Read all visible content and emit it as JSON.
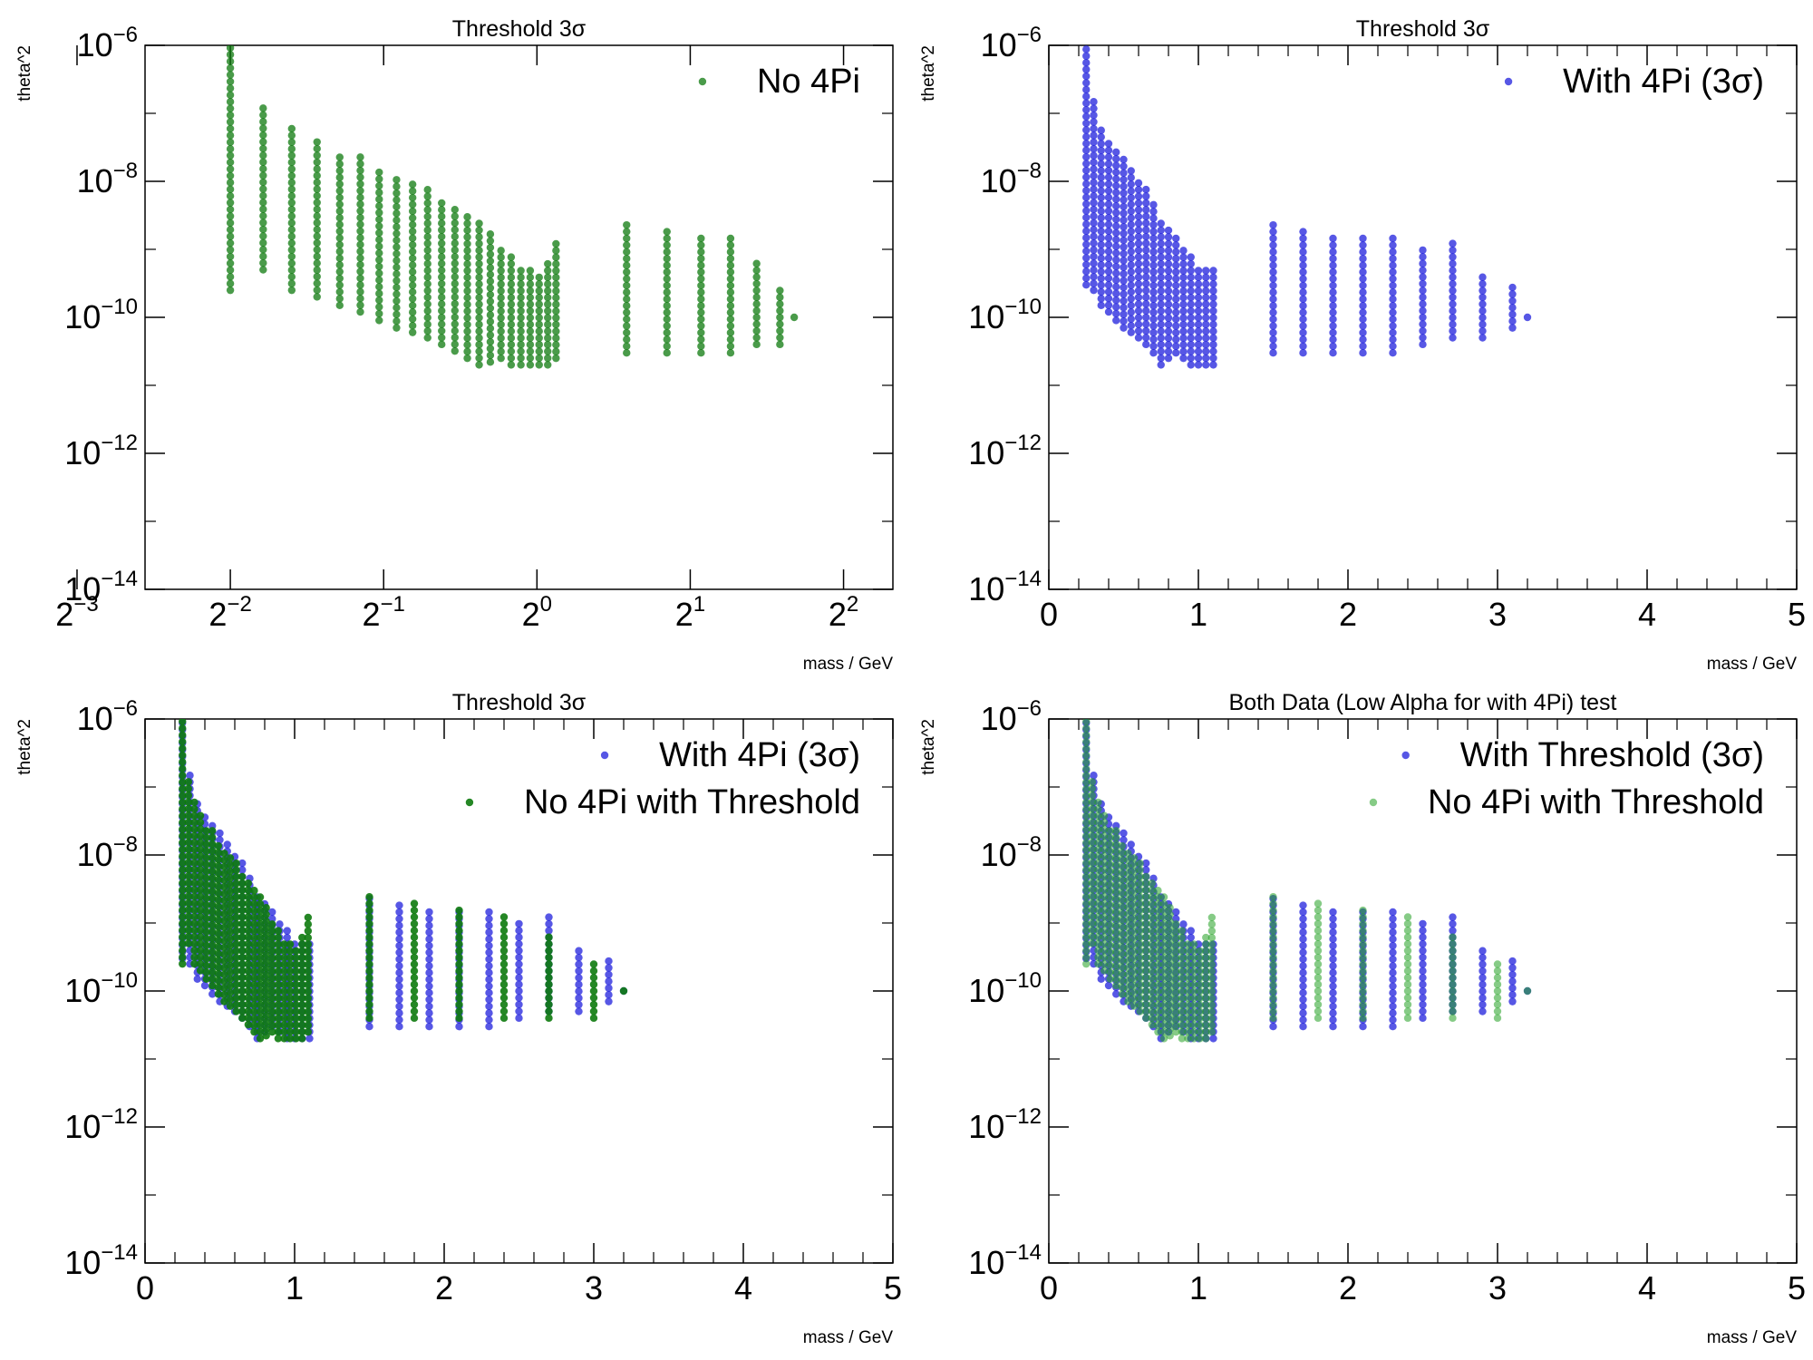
{
  "colors": {
    "with4pi": "#1f1fdc",
    "no4pi": "#0d7a0d",
    "no4pi_light": "#7dcf7d",
    "background": "#ffffff"
  },
  "chart_data": [
    {
      "type": "scatter",
      "title": "Threshold 3σ",
      "xlabel": "mass / GeV",
      "ylabel": "theta^2",
      "xscale": "log2",
      "xlim": [
        0.17,
        5.0
      ],
      "yscale": "log10",
      "ylim": [
        1e-14,
        1e-06
      ],
      "xtick_labels": [
        "2^-3",
        "2^-2",
        "2^-1",
        "2^0",
        "2^1",
        "2^2"
      ],
      "ytick_labels": [
        "10^-14",
        "10^-12",
        "10^-10",
        "10^-8",
        "10^-6"
      ],
      "legend_position": "top-right",
      "series": [
        {
          "name": "No 4Pi",
          "color": "#0d7a0d",
          "alpha": 0.75,
          "x": [
            0.25,
            0.29,
            0.33,
            0.37,
            0.41,
            0.45,
            0.49,
            0.53,
            0.57,
            0.61,
            0.65,
            0.69,
            0.73,
            0.77,
            0.81,
            0.85,
            0.89,
            0.93,
            0.97,
            1.01,
            1.05,
            1.09,
            1.5,
            1.8,
            2.1,
            2.4,
            2.7,
            3.0,
            3.2
          ],
          "y_min": [
            2.5e-10,
            5e-10,
            2.5e-10,
            2e-10,
            1.5e-10,
            1.2e-10,
            9e-11,
            7e-11,
            6e-11,
            5e-11,
            4e-11,
            3.2e-11,
            2.5e-11,
            2e-11,
            2.2e-11,
            2.5e-11,
            2e-11,
            2e-11,
            2e-11,
            2e-11,
            2e-11,
            2.5e-11,
            3e-11,
            3e-11,
            3e-11,
            3e-11,
            4e-11,
            4e-11,
            1e-10
          ],
          "y_max": [
            1e-06,
            1.3e-07,
            6e-08,
            3.8e-08,
            2.7e-08,
            2.3e-08,
            1.6e-08,
            1.3e-08,
            1e-08,
            8e-09,
            6e-09,
            4e-09,
            3e-09,
            2.5e-09,
            1.7e-09,
            1.2e-09,
            9e-10,
            5e-10,
            5e-10,
            4.5e-10,
            7e-10,
            1.3e-09,
            2.5e-09,
            2e-09,
            1.7e-09,
            1.5e-09,
            7e-10,
            3e-10,
            1e-10
          ]
        }
      ]
    },
    {
      "type": "scatter",
      "title": "Threshold 3σ",
      "xlabel": "mass / GeV",
      "ylabel": "theta^2",
      "xscale": "linear",
      "xlim": [
        0,
        5
      ],
      "yscale": "log10",
      "ylim": [
        1e-14,
        1e-06
      ],
      "xtick_labels": [
        "0",
        "1",
        "2",
        "3",
        "4",
        "5"
      ],
      "ytick_labels": [
        "10^-14",
        "10^-12",
        "10^-10",
        "10^-8",
        "10^-6"
      ],
      "legend_position": "top-right",
      "series": [
        {
          "name": "With 4Pi (3σ)",
          "color": "#1f1fdc",
          "alpha": 0.75,
          "x": [
            0.25,
            0.3,
            0.35,
            0.4,
            0.45,
            0.5,
            0.55,
            0.6,
            0.65,
            0.7,
            0.75,
            0.8,
            0.85,
            0.9,
            0.95,
            1.0,
            1.05,
            1.1,
            1.5,
            1.7,
            1.9,
            2.1,
            2.3,
            2.5,
            2.7,
            2.9,
            3.1,
            3.2
          ],
          "y_min": [
            3e-10,
            2.5e-10,
            1.5e-10,
            1.2e-10,
            9e-11,
            7e-11,
            6e-11,
            5e-11,
            4e-11,
            3e-11,
            2e-11,
            2.5e-11,
            3e-11,
            2.5e-11,
            2e-11,
            2e-11,
            2e-11,
            2e-11,
            3e-11,
            3e-11,
            3e-11,
            3e-11,
            3e-11,
            4e-11,
            5e-11,
            5e-11,
            7e-11,
            1e-10
          ],
          "y_max": [
            1e-06,
            1.5e-07,
            7e-08,
            4e-08,
            3e-08,
            2.5e-08,
            1.5e-08,
            1e-08,
            8e-09,
            5e-09,
            3e-09,
            2e-09,
            1.5e-09,
            1e-09,
            8e-10,
            6e-10,
            5e-10,
            5e-10,
            2.5e-09,
            2e-09,
            1.8e-09,
            1.5e-09,
            1.5e-09,
            1.2e-09,
            1.5e-09,
            4e-10,
            3e-10,
            1e-10
          ]
        }
      ]
    },
    {
      "type": "scatter",
      "title": "Threshold 3σ",
      "xlabel": "mass / GeV",
      "ylabel": "theta^2",
      "xscale": "linear",
      "xlim": [
        0,
        5
      ],
      "yscale": "log10",
      "ylim": [
        1e-14,
        1e-06
      ],
      "xtick_labels": [
        "0",
        "1",
        "2",
        "3",
        "4",
        "5"
      ],
      "ytick_labels": [
        "10^-14",
        "10^-12",
        "10^-10",
        "10^-8",
        "10^-6"
      ],
      "legend_position": "top-right",
      "series": [
        {
          "name": "With 4Pi (3σ)",
          "color": "#1f1fdc",
          "alpha": 0.75,
          "x": [
            0.25,
            0.3,
            0.35,
            0.4,
            0.45,
            0.5,
            0.55,
            0.6,
            0.65,
            0.7,
            0.75,
            0.8,
            0.85,
            0.9,
            0.95,
            1.0,
            1.05,
            1.1,
            1.5,
            1.7,
            1.9,
            2.1,
            2.3,
            2.5,
            2.7,
            2.9,
            3.1,
            3.2
          ],
          "y_min": [
            3e-10,
            2.5e-10,
            1.5e-10,
            1.2e-10,
            9e-11,
            7e-11,
            6e-11,
            5e-11,
            4e-11,
            3e-11,
            2e-11,
            2.5e-11,
            3e-11,
            2.5e-11,
            2e-11,
            2e-11,
            2e-11,
            2e-11,
            3e-11,
            3e-11,
            3e-11,
            3e-11,
            3e-11,
            4e-11,
            5e-11,
            5e-11,
            7e-11,
            1e-10
          ],
          "y_max": [
            1e-06,
            1.5e-07,
            7e-08,
            4e-08,
            3e-08,
            2.5e-08,
            1.5e-08,
            1e-08,
            8e-09,
            5e-09,
            3e-09,
            2e-09,
            1.5e-09,
            1e-09,
            8e-10,
            6e-10,
            5e-10,
            5e-10,
            2.5e-09,
            2e-09,
            1.8e-09,
            1.5e-09,
            1.5e-09,
            1.2e-09,
            1.5e-09,
            4e-10,
            3e-10,
            1e-10
          ]
        },
        {
          "name": "No 4Pi with Threshold",
          "color": "#0d7a0d",
          "alpha": 0.9,
          "x": [
            0.25,
            0.29,
            0.33,
            0.37,
            0.41,
            0.45,
            0.49,
            0.53,
            0.57,
            0.61,
            0.65,
            0.69,
            0.73,
            0.77,
            0.81,
            0.85,
            0.89,
            0.93,
            0.97,
            1.01,
            1.05,
            1.09,
            1.5,
            1.8,
            2.1,
            2.4,
            2.7,
            3.0,
            3.2
          ],
          "y_min": [
            2.5e-10,
            5e-10,
            2.5e-10,
            2e-10,
            1.5e-10,
            1.2e-10,
            9e-11,
            7e-11,
            6e-11,
            5e-11,
            4e-11,
            3.2e-11,
            2.5e-11,
            2e-11,
            2.2e-11,
            2.5e-11,
            2e-11,
            2e-11,
            2e-11,
            2e-11,
            2e-11,
            2.5e-11,
            4e-11,
            4e-11,
            4e-11,
            4e-11,
            4e-11,
            4e-11,
            1e-10
          ],
          "y_max": [
            1e-06,
            1.3e-07,
            6e-08,
            3.8e-08,
            2.7e-08,
            2.3e-08,
            1.6e-08,
            1.3e-08,
            1e-08,
            8e-09,
            6e-09,
            4e-09,
            3e-09,
            2.5e-09,
            1.7e-09,
            1.2e-09,
            9e-10,
            5e-10,
            5e-10,
            4.5e-10,
            7e-10,
            1.3e-09,
            2.5e-09,
            2e-09,
            1.7e-09,
            1.5e-09,
            7e-10,
            3e-10,
            1e-10
          ]
        }
      ]
    },
    {
      "type": "scatter",
      "title": "Both Data (Low Alpha for with 4Pi) test",
      "xlabel": "mass / GeV",
      "ylabel": "theta^2",
      "xscale": "linear",
      "xlim": [
        0,
        5
      ],
      "yscale": "log10",
      "ylim": [
        1e-14,
        1e-06
      ],
      "xtick_labels": [
        "0",
        "1",
        "2",
        "3",
        "4",
        "5"
      ],
      "ytick_labels": [
        "10^-14",
        "10^-12",
        "10^-10",
        "10^-8",
        "10^-6"
      ],
      "legend_position": "top-right",
      "series": [
        {
          "name": "With Threshold (3σ)",
          "color": "#1f1fdc",
          "alpha": 0.75,
          "x": [
            0.25,
            0.3,
            0.35,
            0.4,
            0.45,
            0.5,
            0.55,
            0.6,
            0.65,
            0.7,
            0.75,
            0.8,
            0.85,
            0.9,
            0.95,
            1.0,
            1.05,
            1.1,
            1.5,
            1.7,
            1.9,
            2.1,
            2.3,
            2.5,
            2.7,
            2.9,
            3.1,
            3.2
          ],
          "y_min": [
            3e-10,
            2.5e-10,
            1.5e-10,
            1.2e-10,
            9e-11,
            7e-11,
            6e-11,
            5e-11,
            4e-11,
            3e-11,
            2e-11,
            2.5e-11,
            3e-11,
            2.5e-11,
            2e-11,
            2e-11,
            2e-11,
            2e-11,
            3e-11,
            3e-11,
            3e-11,
            3e-11,
            3e-11,
            4e-11,
            5e-11,
            5e-11,
            7e-11,
            1e-10
          ],
          "y_max": [
            1e-06,
            1.5e-07,
            7e-08,
            4e-08,
            3e-08,
            2.5e-08,
            1.5e-08,
            1e-08,
            8e-09,
            5e-09,
            3e-09,
            2e-09,
            1.5e-09,
            1e-09,
            8e-10,
            6e-10,
            5e-10,
            5e-10,
            2.5e-09,
            2e-09,
            1.8e-09,
            1.5e-09,
            1.5e-09,
            1.2e-09,
            1.5e-09,
            4e-10,
            3e-10,
            1e-10
          ]
        },
        {
          "name": "No 4Pi with Threshold",
          "color": "#22a022",
          "alpha": 0.55,
          "x": [
            0.25,
            0.29,
            0.33,
            0.37,
            0.41,
            0.45,
            0.49,
            0.53,
            0.57,
            0.61,
            0.65,
            0.69,
            0.73,
            0.77,
            0.81,
            0.85,
            0.89,
            0.93,
            0.97,
            1.01,
            1.05,
            1.09,
            1.5,
            1.8,
            2.1,
            2.4,
            2.7,
            3.0,
            3.2
          ],
          "y_min": [
            2.5e-10,
            5e-10,
            2.5e-10,
            2e-10,
            1.5e-10,
            1.2e-10,
            9e-11,
            7e-11,
            6e-11,
            5e-11,
            4e-11,
            3.2e-11,
            2.5e-11,
            2e-11,
            2.2e-11,
            2.5e-11,
            2e-11,
            2e-11,
            2e-11,
            2e-11,
            2e-11,
            2.5e-11,
            4e-11,
            4e-11,
            4e-11,
            4e-11,
            4e-11,
            4e-11,
            1e-10
          ],
          "y_max": [
            1e-06,
            1.3e-07,
            6e-08,
            3.8e-08,
            2.7e-08,
            2.3e-08,
            1.6e-08,
            1.3e-08,
            1e-08,
            8e-09,
            6e-09,
            4e-09,
            3e-09,
            2.5e-09,
            1.7e-09,
            1.2e-09,
            9e-10,
            5e-10,
            5e-10,
            4.5e-10,
            7e-10,
            1.3e-09,
            2.5e-09,
            2e-09,
            1.7e-09,
            1.5e-09,
            7e-10,
            3e-10,
            1e-10
          ]
        }
      ]
    }
  ]
}
